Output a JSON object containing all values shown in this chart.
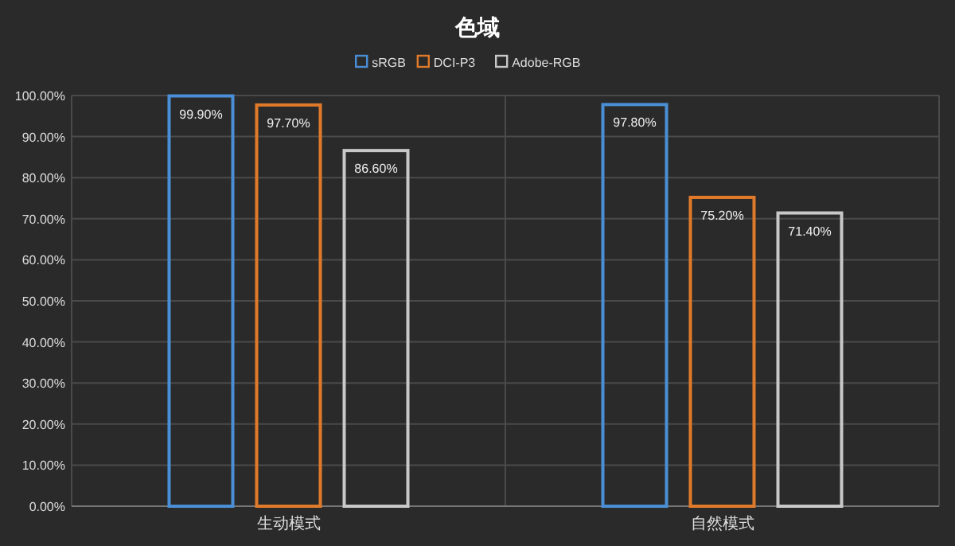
{
  "chart_data": {
    "type": "bar",
    "title": "色域",
    "categories": [
      "生动模式",
      "自然模式"
    ],
    "series": [
      {
        "name": "sRGB",
        "color": "#4a8fd6",
        "values": [
          99.9,
          97.8
        ],
        "value_labels": [
          "99.90%",
          "97.80%"
        ]
      },
      {
        "name": "DCI-P3",
        "color": "#e07a2a",
        "values": [
          97.7,
          75.2
        ],
        "value_labels": [
          "97.70%",
          "75.20%"
        ]
      },
      {
        "name": "Adobe-RGB",
        "color": "#c8c8c8",
        "values": [
          86.6,
          71.4
        ],
        "value_labels": [
          "86.60%",
          "71.40%"
        ]
      }
    ],
    "ylim": [
      0,
      100
    ],
    "yticks": [
      {
        "value": 0,
        "label": "0.00%"
      },
      {
        "value": 10,
        "label": "10.00%"
      },
      {
        "value": 20,
        "label": "20.00%"
      },
      {
        "value": 30,
        "label": "30.00%"
      },
      {
        "value": 40,
        "label": "40.00%"
      },
      {
        "value": 50,
        "label": "50.00%"
      },
      {
        "value": 60,
        "label": "60.00%"
      },
      {
        "value": 70,
        "label": "70.00%"
      },
      {
        "value": 80,
        "label": "80.00%"
      },
      {
        "value": 90,
        "label": "90.00%"
      },
      {
        "value": 100,
        "label": "100.00%"
      }
    ],
    "grid": true,
    "legend": "top"
  }
}
